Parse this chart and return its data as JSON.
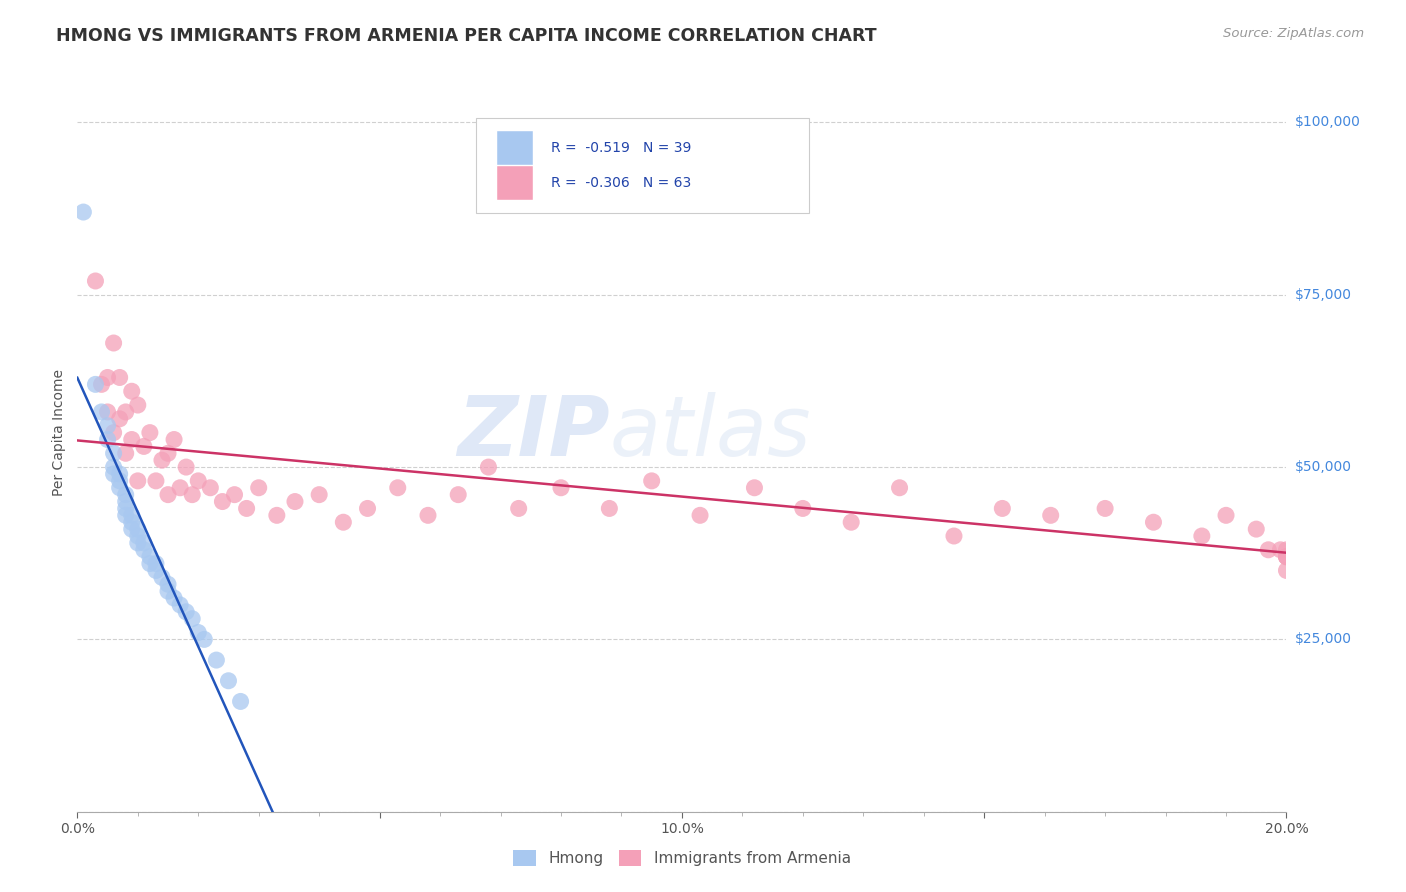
{
  "title": "HMONG VS IMMIGRANTS FROM ARMENIA PER CAPITA INCOME CORRELATION CHART",
  "source": "Source: ZipAtlas.com",
  "ylabel": "Per Capita Income",
  "xmin": 0.0,
  "xmax": 0.2,
  "ymin": 0,
  "ymax": 110000,
  "yticks": [
    0,
    25000,
    50000,
    75000,
    100000
  ],
  "ytick_labels": [
    "",
    "$25,000",
    "$50,000",
    "$75,000",
    "$100,000"
  ],
  "xticks": [
    0.0,
    0.05,
    0.1,
    0.15,
    0.2
  ],
  "xtick_labels": [
    "0.0%",
    "",
    "10.0%",
    "",
    "20.0%"
  ],
  "watermark_zip": "ZIP",
  "watermark_atlas": "atlas",
  "legend_r1": "R =  -0.519   N = 39",
  "legend_r2": "R =  -0.306   N = 63",
  "hmong_color": "#a8c8f0",
  "armenia_color": "#f4a0b8",
  "hmong_line_color": "#2255bb",
  "armenia_line_color": "#cc3366",
  "background_color": "#ffffff",
  "grid_color": "#d0d0d0",
  "hmong_x": [
    0.001,
    0.003,
    0.004,
    0.005,
    0.005,
    0.006,
    0.006,
    0.006,
    0.007,
    0.007,
    0.007,
    0.008,
    0.008,
    0.008,
    0.008,
    0.009,
    0.009,
    0.009,
    0.01,
    0.01,
    0.01,
    0.011,
    0.011,
    0.012,
    0.012,
    0.013,
    0.013,
    0.014,
    0.015,
    0.015,
    0.016,
    0.017,
    0.018,
    0.019,
    0.02,
    0.021,
    0.023,
    0.025,
    0.027
  ],
  "hmong_y": [
    87000,
    62000,
    58000,
    56000,
    54000,
    52000,
    50000,
    49000,
    49000,
    48000,
    47000,
    46000,
    45000,
    44000,
    43000,
    43000,
    42000,
    41000,
    41000,
    40000,
    39000,
    39000,
    38000,
    37000,
    36000,
    36000,
    35000,
    34000,
    33000,
    32000,
    31000,
    30000,
    29000,
    28000,
    26000,
    25000,
    22000,
    19000,
    16000
  ],
  "armenia_x": [
    0.003,
    0.004,
    0.005,
    0.005,
    0.006,
    0.006,
    0.007,
    0.007,
    0.008,
    0.008,
    0.009,
    0.009,
    0.01,
    0.01,
    0.011,
    0.012,
    0.013,
    0.014,
    0.015,
    0.015,
    0.016,
    0.017,
    0.018,
    0.019,
    0.02,
    0.022,
    0.024,
    0.026,
    0.028,
    0.03,
    0.033,
    0.036,
    0.04,
    0.044,
    0.048,
    0.053,
    0.058,
    0.063,
    0.068,
    0.073,
    0.08,
    0.088,
    0.095,
    0.103,
    0.112,
    0.12,
    0.128,
    0.136,
    0.145,
    0.153,
    0.161,
    0.17,
    0.178,
    0.186,
    0.19,
    0.195,
    0.197,
    0.199,
    0.2,
    0.2,
    0.2,
    0.2,
    0.2
  ],
  "armenia_y": [
    77000,
    62000,
    63000,
    58000,
    68000,
    55000,
    63000,
    57000,
    58000,
    52000,
    61000,
    54000,
    59000,
    48000,
    53000,
    55000,
    48000,
    51000,
    52000,
    46000,
    54000,
    47000,
    50000,
    46000,
    48000,
    47000,
    45000,
    46000,
    44000,
    47000,
    43000,
    45000,
    46000,
    42000,
    44000,
    47000,
    43000,
    46000,
    50000,
    44000,
    47000,
    44000,
    48000,
    43000,
    47000,
    44000,
    42000,
    47000,
    40000,
    44000,
    43000,
    44000,
    42000,
    40000,
    43000,
    41000,
    38000,
    38000,
    37000,
    35000,
    37000,
    38000,
    37000
  ]
}
